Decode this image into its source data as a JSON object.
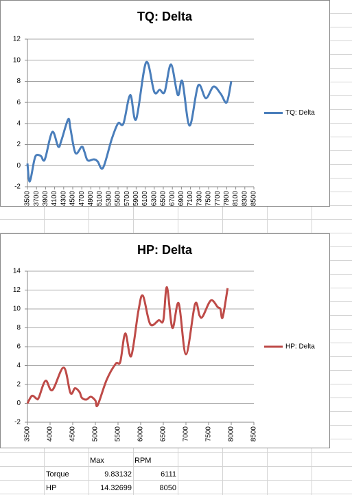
{
  "chart_data": [
    {
      "type": "line",
      "title": "TQ: Delta",
      "x": [
        3500,
        3550,
        3650,
        3700,
        3800,
        3850,
        3900,
        4050,
        4180,
        4250,
        4400,
        4450,
        4560,
        4700,
        4760,
        4830,
        4970,
        5050,
        5170,
        5360,
        5500,
        5620,
        5770,
        5900,
        6120,
        6300,
        6420,
        6530,
        6670,
        6820,
        6920,
        7080,
        7270,
        7440,
        7610,
        7770,
        7900,
        8000
      ],
      "series": [
        {
          "name": "TQ: Delta",
          "color": "#4a7ebb",
          "values": [
            0.2,
            -1.5,
            0.5,
            1.0,
            0.9,
            0.5,
            0.8,
            3.2,
            1.8,
            2.4,
            4.4,
            3.5,
            1.2,
            1.8,
            1.3,
            0.5,
            0.6,
            0.4,
            -0.2,
            2.5,
            4.0,
            4.0,
            6.7,
            4.4,
            9.8,
            7.0,
            7.2,
            7.0,
            9.6,
            6.7,
            8.0,
            3.8,
            7.6,
            6.4,
            7.5,
            6.8,
            6.0,
            8.0
          ]
        }
      ],
      "xlim": [
        3500,
        8500
      ],
      "xticks": [
        3500,
        3700,
        3900,
        4100,
        4300,
        4500,
        4700,
        4900,
        5100,
        5300,
        5500,
        5700,
        5900,
        6100,
        6300,
        6500,
        6700,
        6900,
        7100,
        7300,
        7500,
        7700,
        7900,
        8100,
        8300,
        8500
      ],
      "ylim": [
        -2,
        12
      ],
      "yticks": [
        -2,
        0,
        2,
        4,
        6,
        8,
        10,
        12
      ],
      "grid": true,
      "legend": "right"
    },
    {
      "type": "line",
      "title": "HP: Delta",
      "x": [
        3500,
        3600,
        3700,
        3750,
        3900,
        4050,
        4300,
        4450,
        4550,
        4650,
        4700,
        4800,
        4900,
        5000,
        5050,
        5250,
        5450,
        5550,
        5660,
        5790,
        5950,
        6050,
        6210,
        6400,
        6500,
        6580,
        6700,
        6840,
        7000,
        7200,
        7300,
        7370,
        7550,
        7700,
        7760,
        7810,
        7920
      ],
      "series": [
        {
          "name": "HP: Delta",
          "color": "#be4b48",
          "values": [
            0.0,
            0.8,
            0.5,
            0.6,
            2.4,
            1.4,
            3.8,
            1.1,
            1.6,
            1.2,
            0.6,
            0.4,
            0.7,
            0.3,
            -0.2,
            2.5,
            4.2,
            4.4,
            7.4,
            5.0,
            9.8,
            11.4,
            8.4,
            8.8,
            8.8,
            12.3,
            8.0,
            10.6,
            5.2,
            10.5,
            9.3,
            9.2,
            10.9,
            10.2,
            10.0,
            9.1,
            12.2
          ]
        }
      ],
      "xlim": [
        3500,
        8500
      ],
      "xticks": [
        3500,
        4000,
        4500,
        5000,
        5500,
        6000,
        6500,
        7000,
        7500,
        8000,
        8500
      ],
      "ylim": [
        -2,
        14
      ],
      "yticks": [
        -2,
        0,
        2,
        4,
        6,
        8,
        10,
        12,
        14
      ],
      "grid": true,
      "legend": "right"
    }
  ],
  "table": {
    "header": [
      "Max",
      "RPM"
    ],
    "rows": [
      [
        "Torque",
        "9.83132",
        "6111"
      ],
      [
        "HP",
        "14.32699",
        "8050"
      ]
    ]
  }
}
